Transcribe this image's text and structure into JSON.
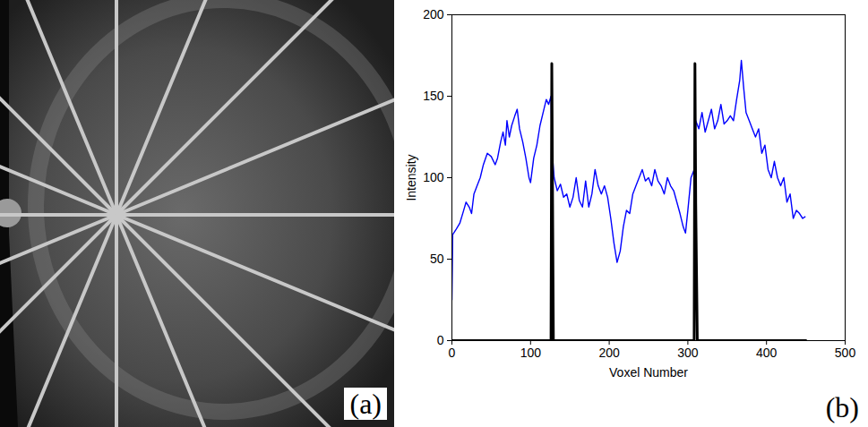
{
  "image_panel": {
    "label": "(a)"
  },
  "chart_data": {
    "type": "line",
    "panel_label": "(b)",
    "x_label": "Voxel Number",
    "y_label": "Intensity",
    "xlim": [
      0,
      500
    ],
    "xticks": [
      0,
      100,
      200,
      300,
      400,
      500
    ],
    "ylim": [
      0,
      200
    ],
    "yticks": [
      0,
      50,
      100,
      150,
      200
    ],
    "grid": false,
    "series": [
      {
        "color": "#0000ff",
        "line_style": "solid",
        "x": [
          0,
          1,
          5,
          10,
          15,
          18,
          22,
          25,
          28,
          32,
          36,
          40,
          45,
          50,
          55,
          58,
          62,
          65,
          68,
          70,
          73,
          76,
          80,
          83,
          86,
          90,
          94,
          98,
          100,
          104,
          108,
          112,
          116,
          120,
          123,
          126,
          127,
          128,
          130,
          134,
          138,
          142,
          146,
          150,
          154,
          158,
          162,
          166,
          170,
          174,
          178,
          182,
          186,
          190,
          194,
          198,
          202,
          206,
          210,
          214,
          218,
          222,
          226,
          230,
          234,
          238,
          242,
          246,
          250,
          254,
          258,
          262,
          266,
          270,
          274,
          278,
          282,
          286,
          290,
          294,
          297,
          300,
          304,
          308,
          310,
          314,
          318,
          322,
          326,
          330,
          334,
          338,
          342,
          346,
          350,
          354,
          358,
          362,
          366,
          368,
          371,
          374,
          378,
          382,
          386,
          390,
          394,
          398,
          402,
          406,
          410,
          414,
          418,
          422,
          426,
          430,
          434,
          438,
          442,
          446,
          449
        ],
        "values": [
          25,
          65,
          68,
          72,
          80,
          85,
          82,
          78,
          90,
          95,
          100,
          108,
          115,
          113,
          108,
          112,
          122,
          128,
          120,
          135,
          125,
          132,
          138,
          142,
          130,
          122,
          112,
          100,
          97,
          112,
          120,
          132,
          140,
          148,
          145,
          150,
          125,
          112,
          100,
          92,
          96,
          88,
          90,
          82,
          88,
          100,
          86,
          82,
          98,
          82,
          90,
          105,
          95,
          90,
          95,
          88,
          75,
          60,
          48,
          55,
          70,
          80,
          78,
          90,
          95,
          100,
          105,
          98,
          100,
          95,
          105,
          98,
          95,
          90,
          100,
          95,
          92,
          85,
          78,
          70,
          66,
          80,
          100,
          105,
          135,
          130,
          140,
          128,
          135,
          142,
          130,
          135,
          145,
          133,
          135,
          138,
          135,
          148,
          160,
          172,
          155,
          140,
          135,
          130,
          125,
          130,
          115,
          120,
          105,
          100,
          110,
          100,
          95,
          100,
          85,
          90,
          75,
          80,
          78,
          75,
          76
        ]
      },
      {
        "color": "#000000",
        "line_style": "solid",
        "x": [
          0,
          126,
          127,
          128,
          129,
          308,
          309,
          310,
          311,
          312,
          450
        ],
        "values": [
          0,
          0,
          170,
          84,
          0,
          0,
          170,
          84,
          42,
          0,
          0
        ]
      }
    ]
  }
}
